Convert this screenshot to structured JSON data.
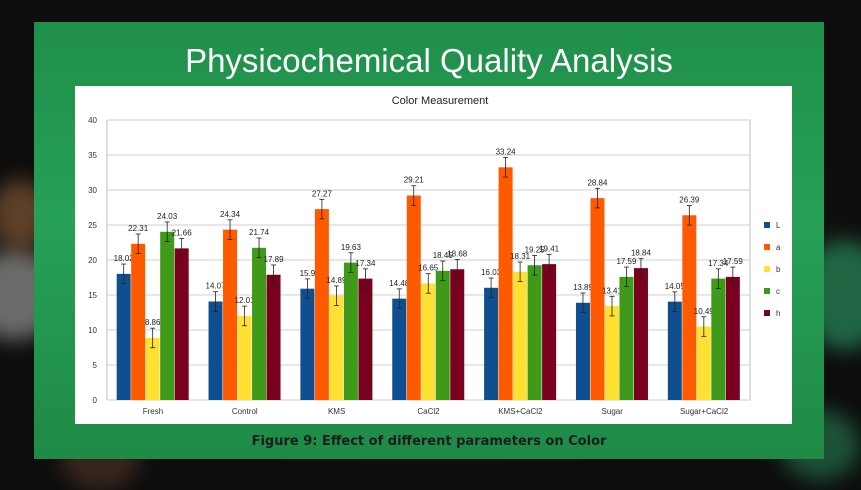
{
  "slide": {
    "title": "Physicochemical Quality Analysis",
    "caption": "Figure 9: Effect of different parameters on Color"
  },
  "colors": {
    "L": "#0f4f8f",
    "a": "#ff5a00",
    "b": "#ffe033",
    "c": "#3f9a1a",
    "h": "#7a0020",
    "slide_green": "#27a058"
  },
  "chart_data": {
    "type": "bar",
    "title": "Color Measurement",
    "categories": [
      "Fresh",
      "Control",
      "KMS",
      "CaCl2",
      "KMS+CaCl2",
      "Sugar",
      "Sugar+CaCl2"
    ],
    "ylim": [
      0,
      40
    ],
    "yticks": [
      0,
      5,
      10,
      15,
      20,
      25,
      30,
      35,
      40
    ],
    "grid": true,
    "legend_position": "right",
    "error_bars": true,
    "series": [
      {
        "name": "L",
        "values": [
          18.02,
          14.07,
          15.9,
          14.48,
          16.03,
          13.89,
          14.05
        ]
      },
      {
        "name": "a",
        "values": [
          22.31,
          24.34,
          27.27,
          29.21,
          33.24,
          28.84,
          26.39
        ]
      },
      {
        "name": "b",
        "values": [
          8.86,
          12.01,
          14.89,
          16.65,
          18.31,
          13.41,
          10.49
        ]
      },
      {
        "name": "c",
        "values": [
          24.03,
          21.74,
          19.63,
          18.45,
          19.25,
          17.59,
          17.34
        ]
      },
      {
        "name": "h",
        "values": [
          21.66,
          17.89,
          17.34,
          18.68,
          19.41,
          18.84,
          17.59
        ]
      }
    ]
  }
}
